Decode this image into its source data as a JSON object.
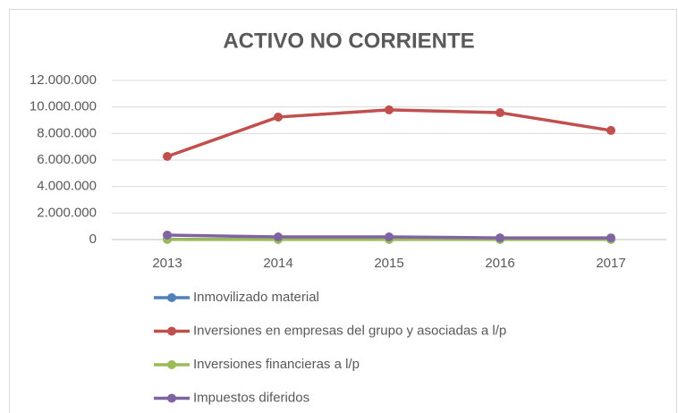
{
  "chart_data": {
    "type": "line",
    "title": "ACTIVO NO CORRIENTE",
    "categories": [
      "2013",
      "2014",
      "2015",
      "2016",
      "2017"
    ],
    "series": [
      {
        "name": "Inmovilizado material",
        "color": "#4f81bd",
        "values": [
          20000,
          15000,
          15000,
          15000,
          15000
        ]
      },
      {
        "name": "Inversiones en empresas del grupo y asociadas a l/p",
        "color": "#c0504d",
        "values": [
          6270000,
          9240000,
          9780000,
          9570000,
          8230000
        ]
      },
      {
        "name": "Inversiones financieras a l/p",
        "color": "#9bbb59",
        "values": [
          10000,
          10000,
          10000,
          10000,
          10000
        ]
      },
      {
        "name": "Impuestos diferidos",
        "color": "#8064a2",
        "values": [
          340000,
          200000,
          200000,
          130000,
          130000
        ]
      }
    ],
    "ylim": [
      0,
      12000000
    ],
    "yticks": [
      0,
      {
        "value": 2000000,
        "label": "2.000.000"
      },
      {
        "value": 4000000,
        "label": "4.000.000"
      },
      {
        "value": 6000000,
        "label": "6.000.000"
      },
      {
        "value": 8000000,
        "label": "8.000.000"
      },
      {
        "value": 10000000,
        "label": "10.000.000"
      },
      {
        "value": 12000000,
        "label": "12.000.000"
      }
    ],
    "grid": true,
    "legend": "bottom"
  }
}
